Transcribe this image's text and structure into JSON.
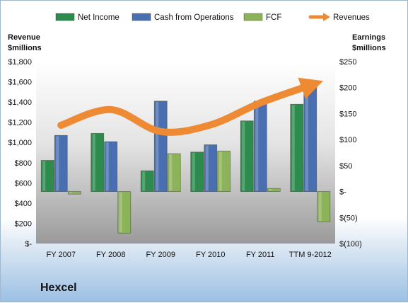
{
  "company": "Hexcel",
  "chart_data": {
    "type": "bar",
    "categories": [
      "FY 2007",
      "FY 2008",
      "FY 2009",
      "FY 2010",
      "FY 2011",
      "TTM 9-2012"
    ],
    "left_axis": {
      "title_line1": "Revenue",
      "title_line2": "$millions",
      "ylim": [
        0,
        1800
      ],
      "ticks": [
        0,
        200,
        400,
        600,
        800,
        1000,
        1200,
        1400,
        1600,
        1800
      ],
      "tick_labels": [
        "$-",
        "$200",
        "$400",
        "$600",
        "$800",
        "$1,000",
        "$1,200",
        "$1,400",
        "$1,600",
        "$1,800"
      ]
    },
    "right_axis": {
      "title_line1": "Earnings",
      "title_line2": "$millions",
      "ylim": [
        -100,
        250
      ],
      "ticks": [
        -100,
        -50,
        0,
        50,
        100,
        150,
        200,
        250
      ],
      "tick_labels": [
        "$(100)",
        "$(50)",
        "$-",
        "$50",
        "$100",
        "$150",
        "$200",
        "$250"
      ]
    },
    "series": [
      {
        "name": "Net Income",
        "type": "bar",
        "axis": "right",
        "color": "#2e8b4e",
        "values": [
          60,
          112,
          40,
          76,
          136,
          168
        ]
      },
      {
        "name": "Cash from Operations",
        "type": "bar",
        "axis": "right",
        "color": "#4a6fb0",
        "values": [
          108,
          96,
          174,
          90,
          174,
          211
        ]
      },
      {
        "name": "FCF",
        "type": "bar",
        "axis": "right",
        "color": "#8db35a",
        "values": [
          -5,
          -80,
          73,
          78,
          6,
          -58
        ]
      },
      {
        "name": "Revenues",
        "type": "line",
        "axis": "left",
        "color": "#ef8a34",
        "values": [
          1170,
          1325,
          1108,
          1174,
          1392,
          1565
        ]
      }
    ],
    "legend_position": "top",
    "grid": false,
    "colors": {
      "plot_top": "#ffffff",
      "plot_bottom": "#9a9a9a"
    }
  }
}
